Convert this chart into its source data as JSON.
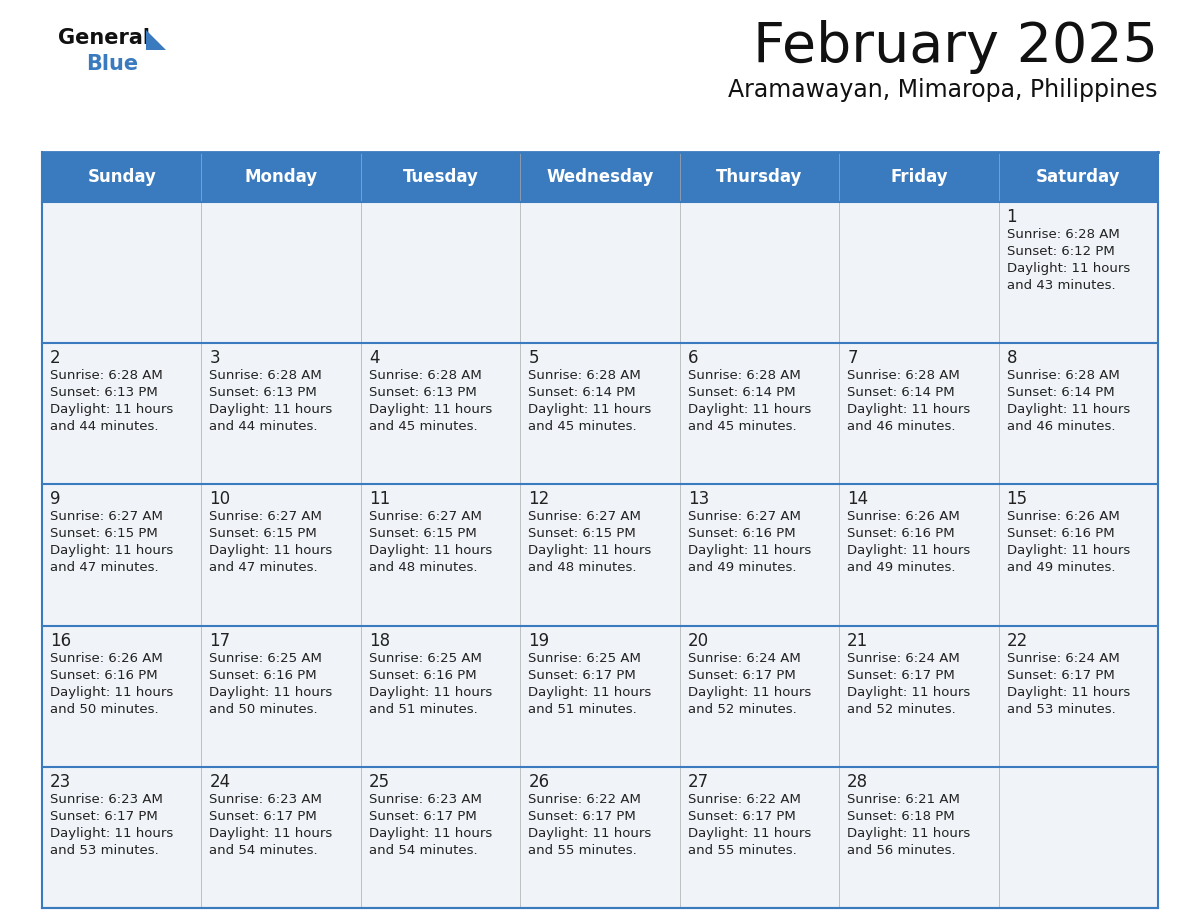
{
  "title": "February 2025",
  "subtitle": "Aramawayan, Mimaropa, Philippines",
  "days_of_week": [
    "Sunday",
    "Monday",
    "Tuesday",
    "Wednesday",
    "Thursday",
    "Friday",
    "Saturday"
  ],
  "header_bg": "#3a7abf",
  "header_text": "#ffffff",
  "cell_bg": "#f0f4f8",
  "border_color": "#3a7abf",
  "row_border_color": "#3a7abf",
  "day_num_color": "#222222",
  "info_color": "#222222",
  "title_color": "#111111",
  "subtitle_color": "#111111",
  "logo_general_color": "#111111",
  "logo_blue_color": "#3a7abf",
  "logo_triangle_color": "#3a7abf",
  "calendar_data": [
    [
      null,
      null,
      null,
      null,
      null,
      null,
      {
        "day": 1,
        "sunrise": "6:28 AM",
        "sunset": "6:12 PM",
        "daylight_line1": "Daylight: 11 hours",
        "daylight_line2": "and 43 minutes."
      }
    ],
    [
      {
        "day": 2,
        "sunrise": "6:28 AM",
        "sunset": "6:13 PM",
        "daylight_line1": "Daylight: 11 hours",
        "daylight_line2": "and 44 minutes."
      },
      {
        "day": 3,
        "sunrise": "6:28 AM",
        "sunset": "6:13 PM",
        "daylight_line1": "Daylight: 11 hours",
        "daylight_line2": "and 44 minutes."
      },
      {
        "day": 4,
        "sunrise": "6:28 AM",
        "sunset": "6:13 PM",
        "daylight_line1": "Daylight: 11 hours",
        "daylight_line2": "and 45 minutes."
      },
      {
        "day": 5,
        "sunrise": "6:28 AM",
        "sunset": "6:14 PM",
        "daylight_line1": "Daylight: 11 hours",
        "daylight_line2": "and 45 minutes."
      },
      {
        "day": 6,
        "sunrise": "6:28 AM",
        "sunset": "6:14 PM",
        "daylight_line1": "Daylight: 11 hours",
        "daylight_line2": "and 45 minutes."
      },
      {
        "day": 7,
        "sunrise": "6:28 AM",
        "sunset": "6:14 PM",
        "daylight_line1": "Daylight: 11 hours",
        "daylight_line2": "and 46 minutes."
      },
      {
        "day": 8,
        "sunrise": "6:28 AM",
        "sunset": "6:14 PM",
        "daylight_line1": "Daylight: 11 hours",
        "daylight_line2": "and 46 minutes."
      }
    ],
    [
      {
        "day": 9,
        "sunrise": "6:27 AM",
        "sunset": "6:15 PM",
        "daylight_line1": "Daylight: 11 hours",
        "daylight_line2": "and 47 minutes."
      },
      {
        "day": 10,
        "sunrise": "6:27 AM",
        "sunset": "6:15 PM",
        "daylight_line1": "Daylight: 11 hours",
        "daylight_line2": "and 47 minutes."
      },
      {
        "day": 11,
        "sunrise": "6:27 AM",
        "sunset": "6:15 PM",
        "daylight_line1": "Daylight: 11 hours",
        "daylight_line2": "and 48 minutes."
      },
      {
        "day": 12,
        "sunrise": "6:27 AM",
        "sunset": "6:15 PM",
        "daylight_line1": "Daylight: 11 hours",
        "daylight_line2": "and 48 minutes."
      },
      {
        "day": 13,
        "sunrise": "6:27 AM",
        "sunset": "6:16 PM",
        "daylight_line1": "Daylight: 11 hours",
        "daylight_line2": "and 49 minutes."
      },
      {
        "day": 14,
        "sunrise": "6:26 AM",
        "sunset": "6:16 PM",
        "daylight_line1": "Daylight: 11 hours",
        "daylight_line2": "and 49 minutes."
      },
      {
        "day": 15,
        "sunrise": "6:26 AM",
        "sunset": "6:16 PM",
        "daylight_line1": "Daylight: 11 hours",
        "daylight_line2": "and 49 minutes."
      }
    ],
    [
      {
        "day": 16,
        "sunrise": "6:26 AM",
        "sunset": "6:16 PM",
        "daylight_line1": "Daylight: 11 hours",
        "daylight_line2": "and 50 minutes."
      },
      {
        "day": 17,
        "sunrise": "6:25 AM",
        "sunset": "6:16 PM",
        "daylight_line1": "Daylight: 11 hours",
        "daylight_line2": "and 50 minutes."
      },
      {
        "day": 18,
        "sunrise": "6:25 AM",
        "sunset": "6:16 PM",
        "daylight_line1": "Daylight: 11 hours",
        "daylight_line2": "and 51 minutes."
      },
      {
        "day": 19,
        "sunrise": "6:25 AM",
        "sunset": "6:17 PM",
        "daylight_line1": "Daylight: 11 hours",
        "daylight_line2": "and 51 minutes."
      },
      {
        "day": 20,
        "sunrise": "6:24 AM",
        "sunset": "6:17 PM",
        "daylight_line1": "Daylight: 11 hours",
        "daylight_line2": "and 52 minutes."
      },
      {
        "day": 21,
        "sunrise": "6:24 AM",
        "sunset": "6:17 PM",
        "daylight_line1": "Daylight: 11 hours",
        "daylight_line2": "and 52 minutes."
      },
      {
        "day": 22,
        "sunrise": "6:24 AM",
        "sunset": "6:17 PM",
        "daylight_line1": "Daylight: 11 hours",
        "daylight_line2": "and 53 minutes."
      }
    ],
    [
      {
        "day": 23,
        "sunrise": "6:23 AM",
        "sunset": "6:17 PM",
        "daylight_line1": "Daylight: 11 hours",
        "daylight_line2": "and 53 minutes."
      },
      {
        "day": 24,
        "sunrise": "6:23 AM",
        "sunset": "6:17 PM",
        "daylight_line1": "Daylight: 11 hours",
        "daylight_line2": "and 54 minutes."
      },
      {
        "day": 25,
        "sunrise": "6:23 AM",
        "sunset": "6:17 PM",
        "daylight_line1": "Daylight: 11 hours",
        "daylight_line2": "and 54 minutes."
      },
      {
        "day": 26,
        "sunrise": "6:22 AM",
        "sunset": "6:17 PM",
        "daylight_line1": "Daylight: 11 hours",
        "daylight_line2": "and 55 minutes."
      },
      {
        "day": 27,
        "sunrise": "6:22 AM",
        "sunset": "6:17 PM",
        "daylight_line1": "Daylight: 11 hours",
        "daylight_line2": "and 55 minutes."
      },
      {
        "day": 28,
        "sunrise": "6:21 AM",
        "sunset": "6:18 PM",
        "daylight_line1": "Daylight: 11 hours",
        "daylight_line2": "and 56 minutes."
      },
      null
    ]
  ]
}
